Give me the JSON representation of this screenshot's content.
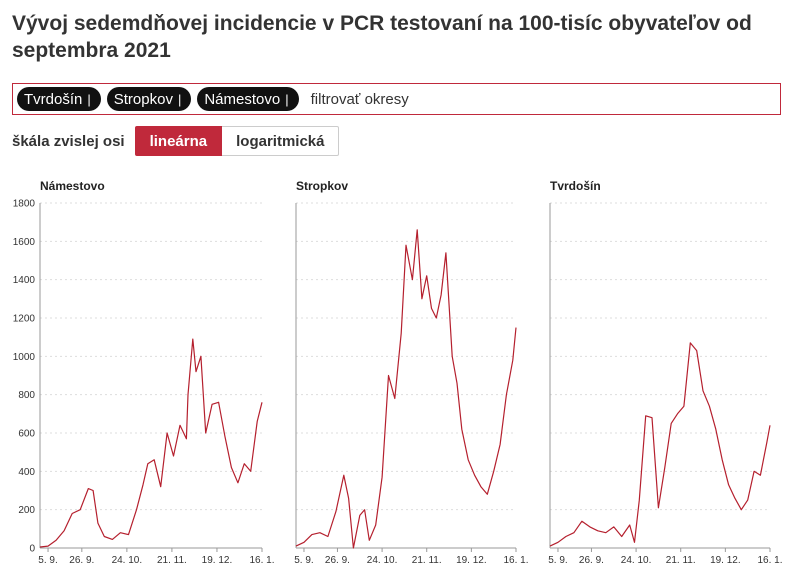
{
  "title": "Vývoj sedemdňovej incidencie v PCR testovaní na 100-tisíc obyvateľov od septembra 2021",
  "filter": {
    "chips": [
      "Tvrdošín",
      "Stropkov",
      "Námestovo"
    ],
    "placeholder": "filtrovať okresy"
  },
  "scale": {
    "label": "škála zvislej osi",
    "options": [
      "lineárna",
      "logaritmická"
    ],
    "active": "lineárna"
  },
  "colors": {
    "accent": "#c0293b",
    "line": "#b5202e"
  },
  "chart_data": [
    {
      "type": "line",
      "title": "Námestovo",
      "ylim": [
        0,
        1800
      ],
      "yticks": [
        0,
        200,
        400,
        600,
        800,
        1000,
        1200,
        1400,
        1600,
        1800
      ],
      "xlim": [
        "2021-08-31",
        "2022-01-16"
      ],
      "xtick_labels": [
        "5. 9.",
        "26. 9.",
        "24. 10.",
        "21. 11.",
        "19. 12.",
        "16. 1."
      ],
      "x": [
        "2021-08-31",
        "2021-09-05",
        "2021-09-10",
        "2021-09-15",
        "2021-09-20",
        "2021-09-25",
        "2021-09-30",
        "2021-10-03",
        "2021-10-06",
        "2021-10-10",
        "2021-10-15",
        "2021-10-20",
        "2021-10-25",
        "2021-10-30",
        "2021-11-03",
        "2021-11-06",
        "2021-11-10",
        "2021-11-14",
        "2021-11-18",
        "2021-11-22",
        "2021-11-26",
        "2021-11-30",
        "2021-12-01",
        "2021-12-04",
        "2021-12-06",
        "2021-12-09",
        "2021-12-12",
        "2021-12-16",
        "2021-12-20",
        "2021-12-24",
        "2021-12-28",
        "2022-01-01",
        "2022-01-05",
        "2022-01-09",
        "2022-01-13",
        "2022-01-16"
      ],
      "values": [
        5,
        10,
        40,
        90,
        180,
        200,
        310,
        300,
        130,
        60,
        45,
        80,
        70,
        200,
        330,
        440,
        460,
        320,
        600,
        480,
        640,
        570,
        800,
        1090,
        920,
        1000,
        600,
        750,
        760,
        580,
        420,
        340,
        440,
        400,
        660,
        760
      ]
    },
    {
      "type": "line",
      "title": "Stropkov",
      "ylim": [
        0,
        1800
      ],
      "yticks": [
        0,
        200,
        400,
        600,
        800,
        1000,
        1200,
        1400,
        1600,
        1800
      ],
      "xlim": [
        "2021-08-31",
        "2022-01-16"
      ],
      "xtick_labels": [
        "5. 9.",
        "26. 9.",
        "24. 10.",
        "21. 11.",
        "19. 12.",
        "16. 1."
      ],
      "x": [
        "2021-08-31",
        "2021-09-05",
        "2021-09-10",
        "2021-09-15",
        "2021-09-20",
        "2021-09-25",
        "2021-09-30",
        "2021-10-03",
        "2021-10-06",
        "2021-10-10",
        "2021-10-13",
        "2021-10-16",
        "2021-10-20",
        "2021-10-24",
        "2021-10-28",
        "2021-11-01",
        "2021-11-05",
        "2021-11-08",
        "2021-11-12",
        "2021-11-15",
        "2021-11-18",
        "2021-11-21",
        "2021-11-24",
        "2021-11-27",
        "2021-11-30",
        "2021-12-03",
        "2021-12-07",
        "2021-12-10",
        "2021-12-13",
        "2021-12-17",
        "2021-12-21",
        "2021-12-25",
        "2021-12-29",
        "2022-01-02",
        "2022-01-06",
        "2022-01-10",
        "2022-01-14",
        "2022-01-16"
      ],
      "values": [
        10,
        30,
        70,
        80,
        60,
        190,
        380,
        260,
        0,
        170,
        200,
        40,
        120,
        370,
        900,
        780,
        1120,
        1580,
        1400,
        1660,
        1300,
        1420,
        1250,
        1200,
        1320,
        1540,
        1000,
        860,
        620,
        460,
        380,
        320,
        280,
        400,
        540,
        800,
        980,
        1150
      ]
    },
    {
      "type": "line",
      "title": "Tvrdošín",
      "ylim": [
        0,
        1800
      ],
      "yticks": [
        0,
        200,
        400,
        600,
        800,
        1000,
        1200,
        1400,
        1600,
        1800
      ],
      "xlim": [
        "2021-08-31",
        "2022-01-16"
      ],
      "xtick_labels": [
        "5. 9.",
        "26. 9.",
        "24. 10.",
        "21. 11.",
        "19. 12.",
        "16. 1."
      ],
      "x": [
        "2021-08-31",
        "2021-09-05",
        "2021-09-10",
        "2021-09-15",
        "2021-09-20",
        "2021-09-25",
        "2021-09-30",
        "2021-10-05",
        "2021-10-10",
        "2021-10-15",
        "2021-10-20",
        "2021-10-23",
        "2021-10-26",
        "2021-10-30",
        "2021-11-03",
        "2021-11-07",
        "2021-11-11",
        "2021-11-15",
        "2021-11-19",
        "2021-11-23",
        "2021-11-27",
        "2021-12-01",
        "2021-12-05",
        "2021-12-09",
        "2021-12-13",
        "2021-12-17",
        "2021-12-21",
        "2021-12-25",
        "2021-12-29",
        "2022-01-02",
        "2022-01-06",
        "2022-01-10",
        "2022-01-14",
        "2022-01-16"
      ],
      "values": [
        10,
        30,
        60,
        80,
        140,
        110,
        90,
        80,
        110,
        60,
        120,
        30,
        250,
        690,
        680,
        210,
        420,
        650,
        700,
        740,
        1070,
        1030,
        820,
        740,
        620,
        460,
        330,
        260,
        200,
        250,
        400,
        380,
        550,
        640
      ]
    }
  ]
}
